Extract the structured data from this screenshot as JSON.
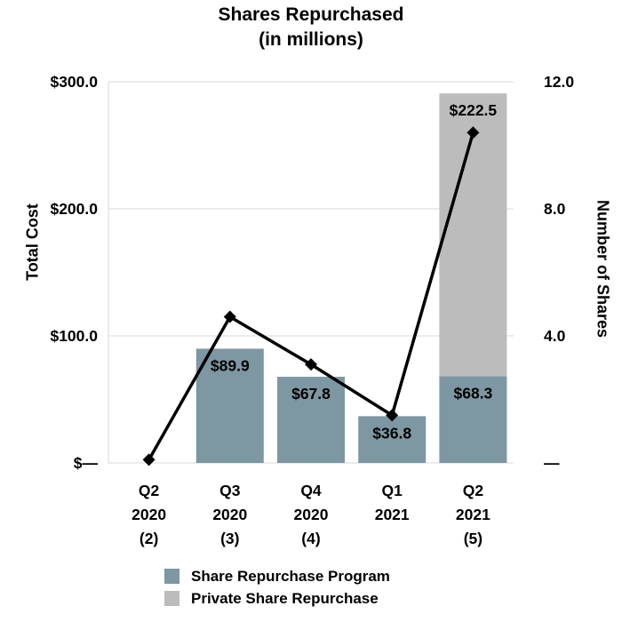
{
  "title": {
    "line1": "Shares Repurchased",
    "line2": "(in millions)"
  },
  "chart_data": {
    "type": "bar",
    "subtype": "stacked-bar-with-line-combo",
    "grid": true,
    "grid_color": "#d9d9d9",
    "categories": [
      {
        "lines": [
          "Q2",
          "2020",
          "(2)"
        ]
      },
      {
        "lines": [
          "Q3",
          "2020",
          "(3)"
        ]
      },
      {
        "lines": [
          "Q4",
          "2020",
          "(4)"
        ]
      },
      {
        "lines": [
          "Q1",
          "2021"
        ]
      },
      {
        "lines": [
          "Q2",
          "2021",
          "(5)"
        ]
      }
    ],
    "left_axis": {
      "title": "Total Cost",
      "min": 0,
      "max": 300,
      "ticks": [
        {
          "value": 300,
          "label": "$300.0"
        },
        {
          "value": 200,
          "label": "$200.0"
        },
        {
          "value": 100,
          "label": "$100.0"
        },
        {
          "value": 0,
          "label": "$—"
        }
      ]
    },
    "right_axis": {
      "title": "Number of Shares",
      "min": 0,
      "max": 12,
      "ticks": [
        {
          "value": 12,
          "label": "12.0"
        },
        {
          "value": 8,
          "label": "8.0"
        },
        {
          "value": 4,
          "label": "4.0"
        },
        {
          "value": 0,
          "label": "—"
        }
      ]
    },
    "bar_series": [
      {
        "name": "Share Repurchase Program",
        "axis": "left",
        "color": "#7d97a3",
        "values": [
          0,
          89.9,
          67.8,
          36.8,
          68.3
        ],
        "data_labels": [
          "",
          "$89.9",
          "$67.8",
          "$36.8",
          "$68.3"
        ],
        "label_color": "#ffffff"
      },
      {
        "name": "Private Share Repurchase",
        "axis": "left",
        "color": "#bcbcbc",
        "values": [
          0,
          0,
          0,
          0,
          222.5
        ],
        "data_labels": [
          "",
          "",
          "",
          "",
          "$222.5"
        ],
        "label_color": "#1a1a1a"
      }
    ],
    "line_series": {
      "name": "Number of Shares",
      "axis": "right",
      "color": "#000000",
      "values": [
        0.1,
        4.6,
        3.1,
        1.5,
        10.4
      ]
    },
    "legend": [
      {
        "label": "Share Repurchase Program",
        "color": "#7d97a3"
      },
      {
        "label": "Private Share Repurchase",
        "color": "#bcbcbc"
      }
    ]
  }
}
